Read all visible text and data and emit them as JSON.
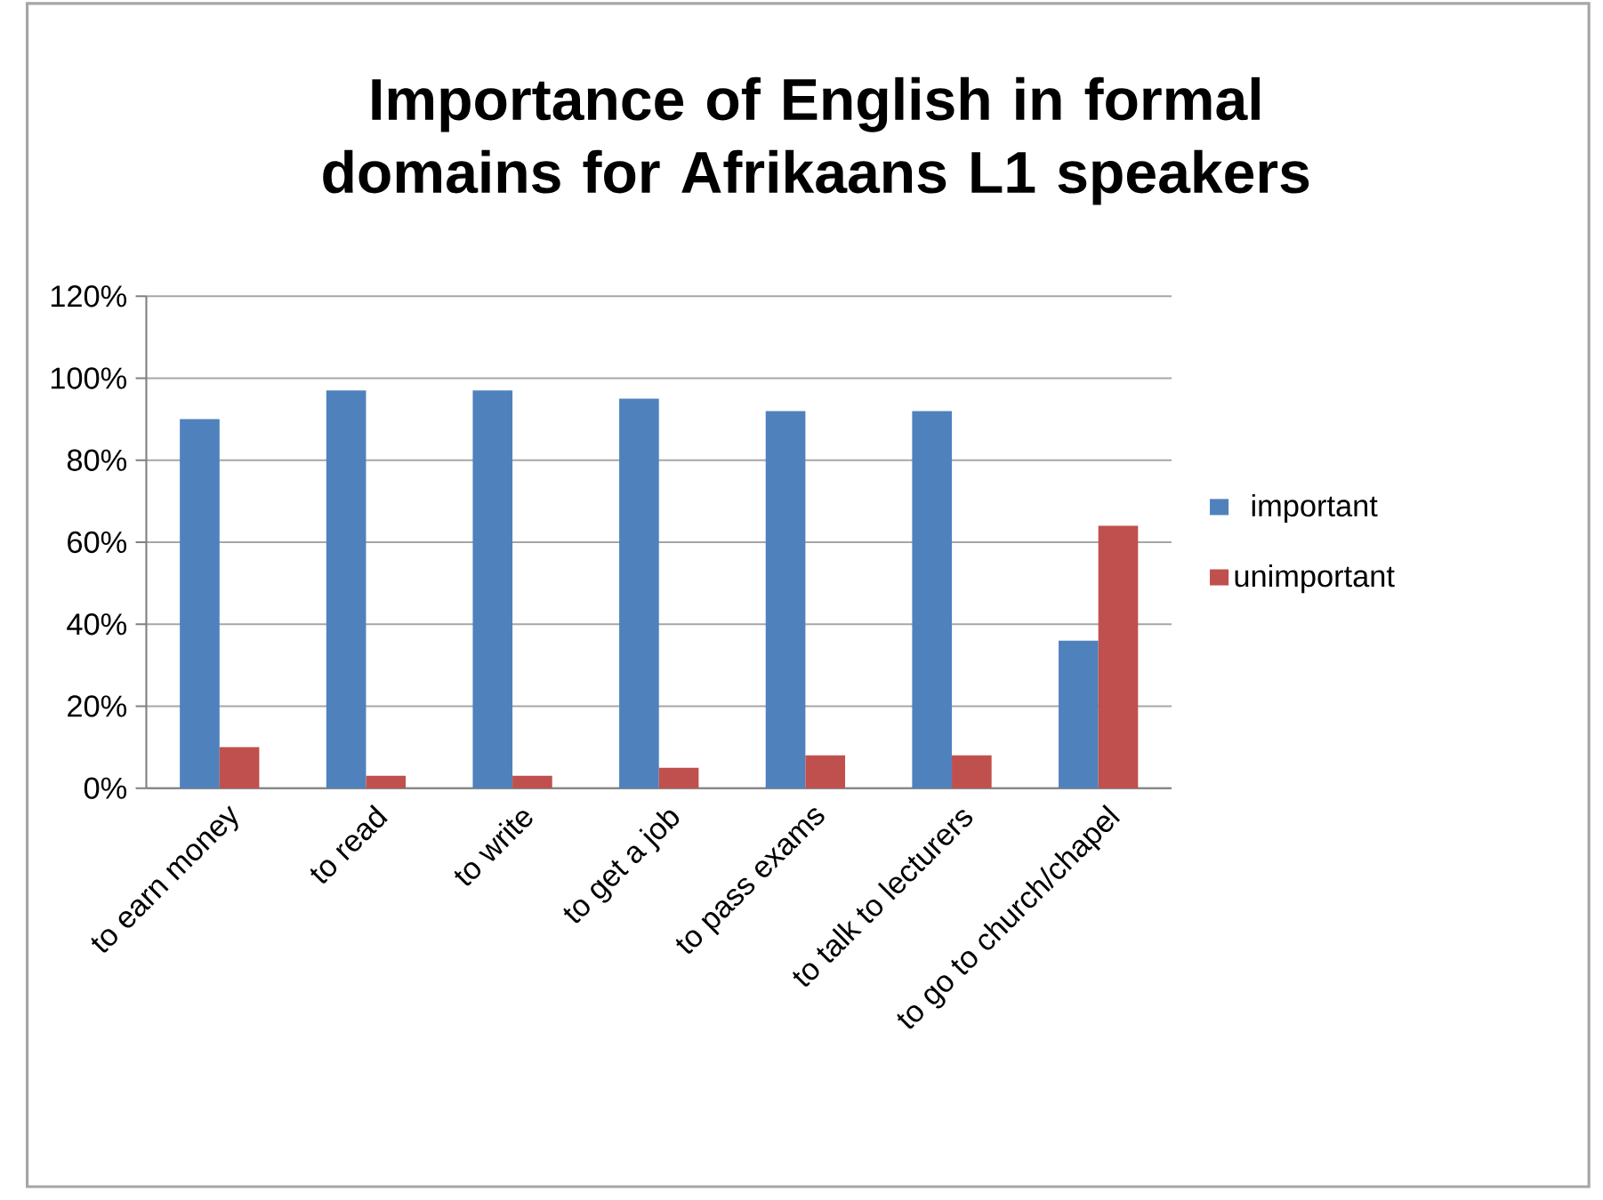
{
  "chart_data": {
    "type": "bar",
    "title": "Importance of English in formal domains for Afrikaans L1 speakers",
    "categories": [
      "to earn money",
      "to read",
      "to write",
      "to get a job",
      "to pass exams",
      "to talk to lecturers",
      "to go to church/chapel"
    ],
    "series": [
      {
        "name": "important",
        "color": "#4f81bd",
        "values": [
          90,
          97,
          97,
          95,
          92,
          92,
          36
        ]
      },
      {
        "name": "unimportant",
        "color": "#c0504d",
        "values": [
          10,
          3,
          3,
          5,
          8,
          8,
          64
        ]
      }
    ],
    "ylim": [
      0,
      120
    ],
    "yticks": [
      {
        "value": 0,
        "label": "0%"
      },
      {
        "value": 20,
        "label": "20%"
      },
      {
        "value": 40,
        "label": "40%"
      },
      {
        "value": 60,
        "label": "60%"
      },
      {
        "value": 80,
        "label": "80%"
      },
      {
        "value": 100,
        "label": "100%"
      },
      {
        "value": 120,
        "label": "120%"
      }
    ],
    "grid": "y",
    "legend": "right"
  }
}
